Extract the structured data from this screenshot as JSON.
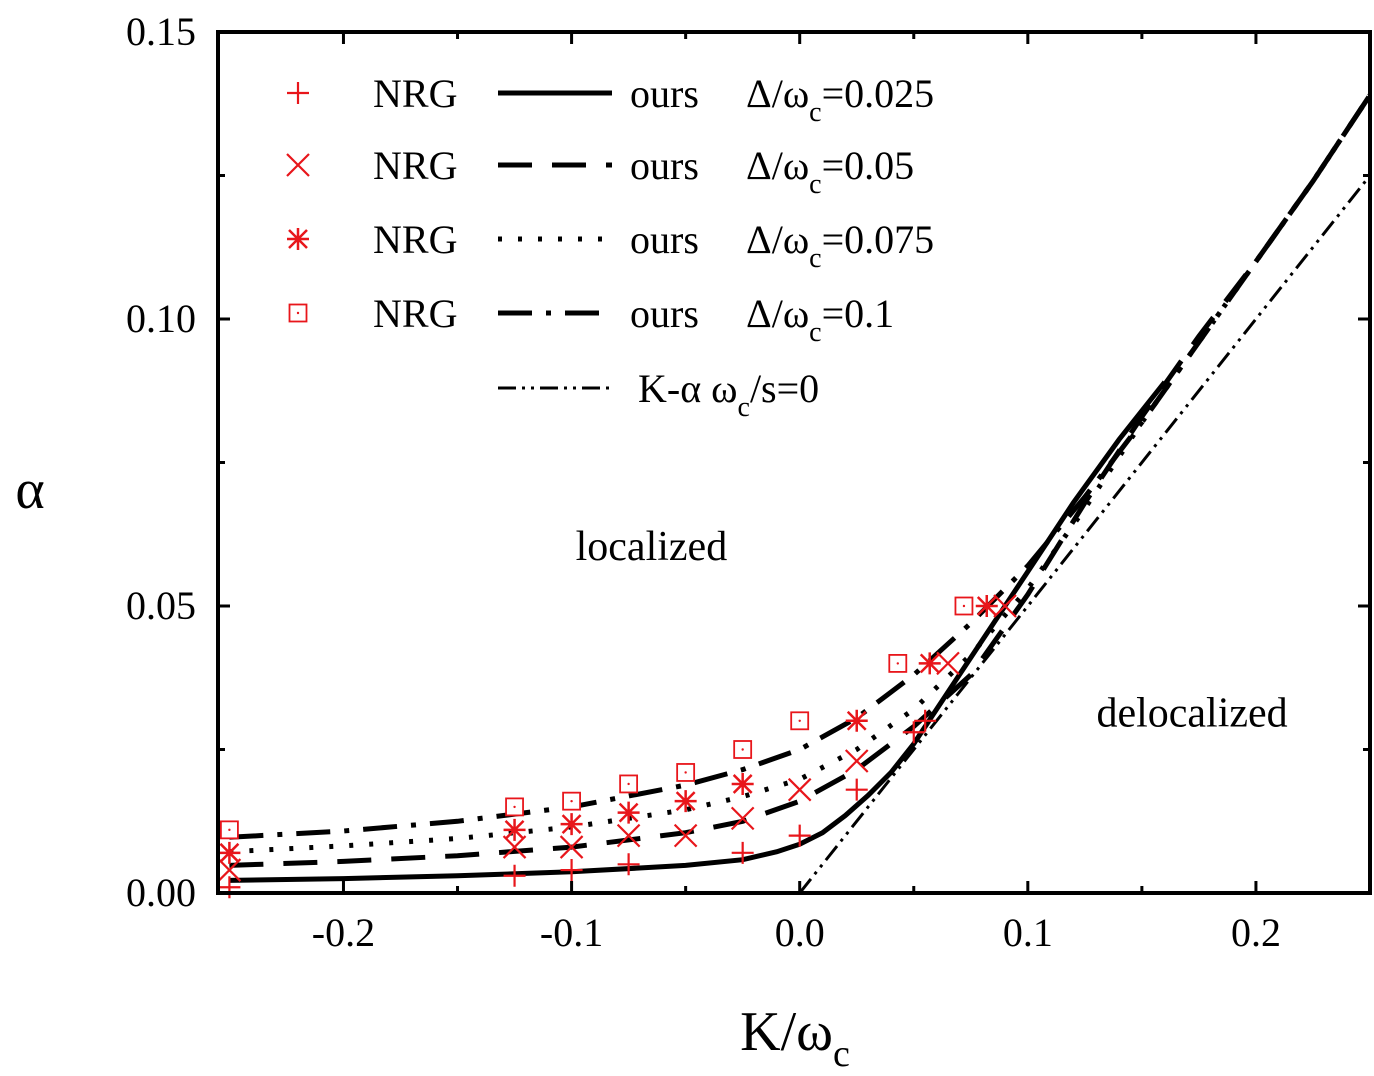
{
  "chart_data": {
    "type": "line",
    "xlabel": {
      "main": "K/ω",
      "sub": "c"
    },
    "ylabel": "α",
    "xlim": [
      -0.255,
      0.25
    ],
    "ylim": [
      0.0,
      0.15
    ],
    "xticks": [
      -0.2,
      -0.1,
      0.0,
      0.1,
      0.2
    ],
    "xtick_labels": [
      "-0.2",
      "-0.1",
      "0.0",
      "0.1",
      "0.2"
    ],
    "yticks": [
      0.0,
      0.05,
      0.1,
      0.15
    ],
    "ytick_labels": [
      "0.00",
      "0.05",
      "0.10",
      "0.15"
    ],
    "grid": false,
    "legend_position": "top-left",
    "colors": {
      "nrg": "#e8161b",
      "ours": "#000000"
    },
    "nrg_label": "NRG",
    "ours_label": "ours",
    "delta_prefix": "Δ/ω",
    "delta_sub": "c",
    "series": [
      {
        "delta": "=0.025",
        "marker": "plus",
        "line_style": "solid",
        "nrg_points": [
          [
            -0.25,
            0.001
          ],
          [
            -0.125,
            0.003
          ],
          [
            -0.1,
            0.004
          ],
          [
            -0.075,
            0.005
          ],
          [
            -0.025,
            0.007
          ],
          [
            0.0,
            0.01
          ],
          [
            0.025,
            0.018
          ],
          [
            0.05,
            0.028
          ],
          [
            0.055,
            0.03
          ]
        ],
        "ours_curve": [
          [
            -0.25,
            0.0022
          ],
          [
            -0.2,
            0.0025
          ],
          [
            -0.15,
            0.003
          ],
          [
            -0.1,
            0.0037
          ],
          [
            -0.05,
            0.0048
          ],
          [
            -0.025,
            0.0058
          ],
          [
            -0.01,
            0.0072
          ],
          [
            0.0,
            0.0085
          ],
          [
            0.01,
            0.0105
          ],
          [
            0.02,
            0.0135
          ],
          [
            0.03,
            0.017
          ],
          [
            0.04,
            0.021
          ],
          [
            0.05,
            0.026
          ],
          [
            0.06,
            0.032
          ],
          [
            0.08,
            0.044
          ],
          [
            0.1,
            0.056
          ],
          [
            0.12,
            0.068
          ],
          [
            0.14,
            0.079
          ],
          [
            0.16,
            0.089
          ]
        ]
      },
      {
        "delta": "=0.05",
        "marker": "cross",
        "line_style": "dashed",
        "nrg_points": [
          [
            -0.25,
            0.004
          ],
          [
            -0.125,
            0.008
          ],
          [
            -0.1,
            0.008
          ],
          [
            -0.075,
            0.01
          ],
          [
            -0.05,
            0.01
          ],
          [
            -0.025,
            0.013
          ],
          [
            0.0,
            0.018
          ],
          [
            0.025,
            0.023
          ],
          [
            0.065,
            0.04
          ],
          [
            0.09,
            0.05
          ]
        ],
        "ours_curve": [
          [
            -0.25,
            0.0048
          ],
          [
            -0.2,
            0.0055
          ],
          [
            -0.15,
            0.0065
          ],
          [
            -0.1,
            0.008
          ],
          [
            -0.05,
            0.0105
          ],
          [
            -0.025,
            0.0125
          ],
          [
            0.0,
            0.016
          ],
          [
            0.025,
            0.0215
          ],
          [
            0.05,
            0.029
          ],
          [
            0.075,
            0.038
          ],
          [
            0.1,
            0.052
          ],
          [
            0.125,
            0.068
          ],
          [
            0.15,
            0.083
          ],
          [
            0.175,
            0.097
          ],
          [
            0.2,
            0.11
          ],
          [
            0.225,
            0.124
          ],
          [
            0.25,
            0.139
          ]
        ]
      },
      {
        "delta": "=0.075",
        "marker": "star",
        "line_style": "dotted",
        "nrg_points": [
          [
            -0.25,
            0.007
          ],
          [
            -0.125,
            0.011
          ],
          [
            -0.1,
            0.012
          ],
          [
            -0.075,
            0.014
          ],
          [
            -0.05,
            0.016
          ],
          [
            -0.025,
            0.019
          ],
          [
            0.025,
            0.03
          ],
          [
            0.057,
            0.04
          ],
          [
            0.082,
            0.05
          ]
        ],
        "ours_curve": [
          [
            -0.25,
            0.0072
          ],
          [
            -0.2,
            0.0082
          ],
          [
            -0.15,
            0.0095
          ],
          [
            -0.1,
            0.0115
          ],
          [
            -0.05,
            0.0145
          ],
          [
            -0.025,
            0.0168
          ],
          [
            0.0,
            0.0198
          ],
          [
            0.025,
            0.025
          ],
          [
            0.05,
            0.032
          ],
          [
            0.075,
            0.0415
          ],
          [
            0.1,
            0.053
          ],
          [
            0.125,
            0.067
          ],
          [
            0.15,
            0.082
          ],
          [
            0.175,
            0.096
          ],
          [
            0.2,
            0.11
          ],
          [
            0.225,
            0.124
          ],
          [
            0.25,
            0.139
          ]
        ]
      },
      {
        "delta": "=0.1",
        "marker": "square",
        "line_style": "dashdot",
        "nrg_points": [
          [
            -0.25,
            0.011
          ],
          [
            -0.125,
            0.015
          ],
          [
            -0.1,
            0.016
          ],
          [
            -0.075,
            0.019
          ],
          [
            -0.05,
            0.021
          ],
          [
            -0.025,
            0.025
          ],
          [
            0.0,
            0.03
          ],
          [
            0.043,
            0.04
          ],
          [
            0.072,
            0.05
          ]
        ],
        "ours_curve": [
          [
            -0.25,
            0.0097
          ],
          [
            -0.2,
            0.0108
          ],
          [
            -0.15,
            0.0125
          ],
          [
            -0.1,
            0.015
          ],
          [
            -0.05,
            0.0188
          ],
          [
            -0.025,
            0.0215
          ],
          [
            0.0,
            0.025
          ],
          [
            0.025,
            0.0305
          ],
          [
            0.05,
            0.038
          ],
          [
            0.075,
            0.047
          ],
          [
            0.1,
            0.057
          ],
          [
            0.125,
            0.069
          ],
          [
            0.15,
            0.082
          ],
          [
            0.175,
            0.096
          ],
          [
            0.2,
            0.11
          ],
          [
            0.225,
            0.124
          ],
          [
            0.25,
            0.139
          ]
        ]
      }
    ],
    "reference_line": {
      "label": "K-α ω",
      "label_sub": "c",
      "label_suffix": "/s=0",
      "line_style": "dashdotdot",
      "points": [
        [
          0.0,
          0.0
        ],
        [
          0.25,
          0.125
        ]
      ]
    },
    "annotations": [
      {
        "text": "localized",
        "x": -0.065,
        "y": 0.058
      },
      {
        "text": "delocalized",
        "x": 0.172,
        "y": 0.029
      }
    ]
  }
}
